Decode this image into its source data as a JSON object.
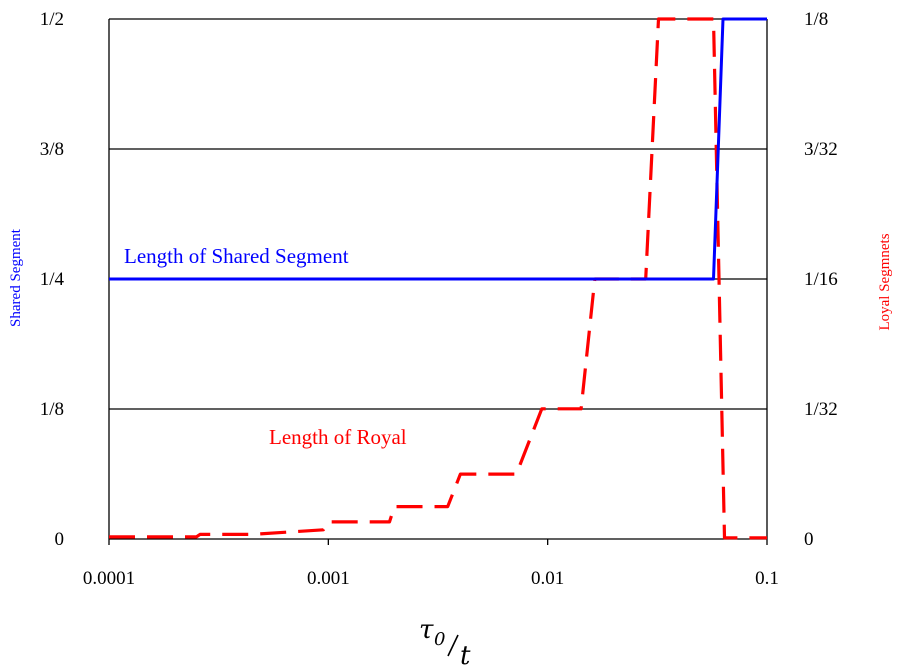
{
  "chart_data": {
    "type": "line",
    "xscale": "log",
    "xlim": [
      0.0001,
      0.1
    ],
    "xticks": [
      "0.0001",
      "0.001",
      "0.01",
      "0.1"
    ],
    "xlabel": {
      "numerator": "τ",
      "subscript": "0",
      "denominator": "t"
    },
    "left_axis": {
      "label": "Shared Segment",
      "ylim": [
        0,
        0.5
      ],
      "ticks": [
        {
          "value": 0,
          "label": "0"
        },
        {
          "value": 0.125,
          "label": "1/8"
        },
        {
          "value": 0.25,
          "label": "1/4"
        },
        {
          "value": 0.375,
          "label": "3/8"
        },
        {
          "value": 0.5,
          "label": "1/2"
        }
      ]
    },
    "right_axis": {
      "label": "Loyal Segmnets",
      "ylim": [
        0,
        0.125
      ],
      "ticks": [
        {
          "value": 0,
          "label": "0"
        },
        {
          "value": 0.03125,
          "label": "1/32"
        },
        {
          "value": 0.0625,
          "label": "1/16"
        },
        {
          "value": 0.09375,
          "label": "3/32"
        },
        {
          "value": 0.125,
          "label": "1/8"
        }
      ]
    },
    "grid": true,
    "series": [
      {
        "name": "Length of Shared Segment",
        "axis": "left",
        "color": "#0000ff",
        "style": "solid",
        "points": [
          [
            0.0001,
            0.25
          ],
          [
            0.057,
            0.25
          ],
          [
            0.063,
            0.5
          ],
          [
            0.1,
            0.5
          ]
        ]
      },
      {
        "name": "Length of Royal",
        "axis": "right",
        "color": "#ff0000",
        "style": "dashed",
        "points": [
          [
            0.0001,
            0.0005
          ],
          [
            0.00025,
            0.0005
          ],
          [
            0.00026,
            0.0011
          ],
          [
            0.00045,
            0.0011
          ],
          [
            0.00095,
            0.0022
          ],
          [
            0.001,
            0.0041
          ],
          [
            0.0019,
            0.0041
          ],
          [
            0.002,
            0.0078
          ],
          [
            0.0035,
            0.0078
          ],
          [
            0.004,
            0.0156
          ],
          [
            0.0072,
            0.0156
          ],
          [
            0.0094,
            0.0313
          ],
          [
            0.0142,
            0.0313
          ],
          [
            0.0164,
            0.0625
          ],
          [
            0.028,
            0.0625
          ],
          [
            0.032,
            0.125
          ],
          [
            0.057,
            0.125
          ],
          [
            0.064,
            0.0003
          ],
          [
            0.1,
            0.0003
          ]
        ]
      }
    ],
    "annotations": [
      {
        "text": "Length of Shared Segment",
        "color": "#0000ff"
      },
      {
        "text": "Length of Royal",
        "color": "#ff0000"
      }
    ]
  }
}
